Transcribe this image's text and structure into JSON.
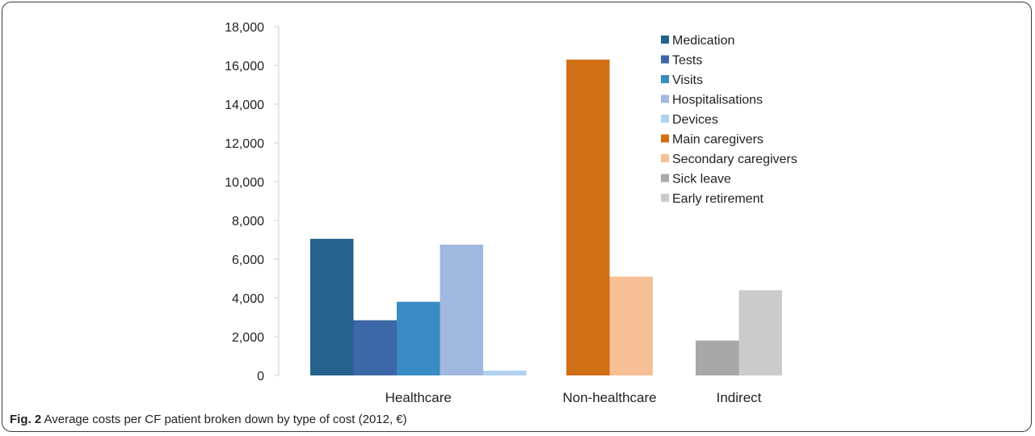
{
  "caption": {
    "label": "Fig. 2",
    "text": " Average costs per CF patient broken down by type of cost (2012, €)"
  },
  "chart_data": {
    "type": "bar",
    "title": "",
    "xlabel": "",
    "ylabel": "",
    "ylim": [
      0,
      18000
    ],
    "yticks": [
      0,
      2000,
      4000,
      6000,
      8000,
      10000,
      12000,
      14000,
      16000,
      18000
    ],
    "ytick_labels": [
      "0",
      "2,000",
      "4,000",
      "6,000",
      "8,000",
      "10,000",
      "12,000",
      "14,000",
      "16,000",
      "18,000"
    ],
    "grid": false,
    "legend_position": "top-right",
    "groups": [
      {
        "category": "Healthcare",
        "bars": [
          {
            "series": "Medication",
            "value": 7050
          },
          {
            "series": "Tests",
            "value": 2850
          },
          {
            "series": "Visits",
            "value": 3800
          },
          {
            "series": "Hospitalisations",
            "value": 6750
          },
          {
            "series": "Devices",
            "value": 250
          }
        ]
      },
      {
        "category": "Non-healthcare",
        "bars": [
          {
            "series": "Main caregivers",
            "value": 16300
          },
          {
            "series": "Secondary caregivers",
            "value": 5100
          }
        ]
      },
      {
        "category": "Indirect",
        "bars": [
          {
            "series": "Sick leave",
            "value": 1800
          },
          {
            "series": "Early retirement",
            "value": 4400
          }
        ]
      }
    ],
    "series": [
      {
        "name": "Medication",
        "color": "#24628c"
      },
      {
        "name": "Tests",
        "color": "#3c68a7"
      },
      {
        "name": "Visits",
        "color": "#3a8cc4"
      },
      {
        "name": "Hospitalisations",
        "color": "#a1b9e0"
      },
      {
        "name": "Devices",
        "color": "#b4d2f0"
      },
      {
        "name": "Main caregivers",
        "color": "#d06e15"
      },
      {
        "name": "Secondary caregivers",
        "color": "#f6bf95"
      },
      {
        "name": "Sick leave",
        "color": "#a8a8a8"
      },
      {
        "name": "Early retirement",
        "color": "#cbcbcb"
      }
    ]
  }
}
